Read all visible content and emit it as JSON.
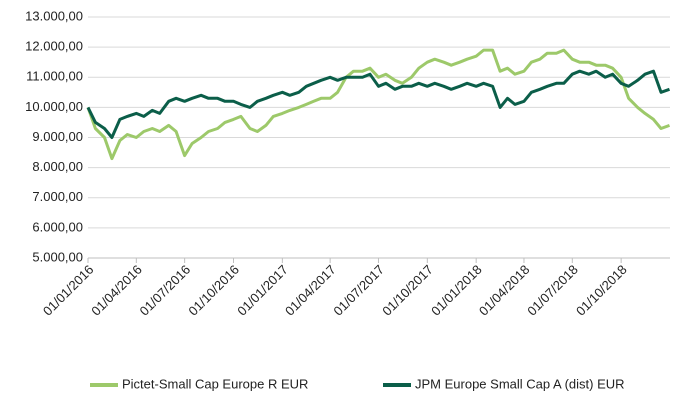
{
  "chart_data": {
    "type": "line",
    "x": [
      "2016-01-01",
      "2016-01-15",
      "2016-02-01",
      "2016-02-15",
      "2016-03-01",
      "2016-03-15",
      "2016-04-01",
      "2016-04-15",
      "2016-05-01",
      "2016-05-15",
      "2016-06-01",
      "2016-06-15",
      "2016-07-01",
      "2016-07-15",
      "2016-08-01",
      "2016-08-15",
      "2016-09-01",
      "2016-09-15",
      "2016-10-01",
      "2016-10-15",
      "2016-11-01",
      "2016-11-15",
      "2016-12-01",
      "2016-12-15",
      "2017-01-01",
      "2017-01-15",
      "2017-02-01",
      "2017-02-15",
      "2017-03-01",
      "2017-03-15",
      "2017-04-01",
      "2017-04-15",
      "2017-05-01",
      "2017-05-15",
      "2017-06-01",
      "2017-06-15",
      "2017-07-01",
      "2017-07-15",
      "2017-08-01",
      "2017-08-15",
      "2017-09-01",
      "2017-09-15",
      "2017-10-01",
      "2017-10-15",
      "2017-11-01",
      "2017-11-15",
      "2017-12-01",
      "2017-12-15",
      "2018-01-01",
      "2018-01-15",
      "2018-02-01",
      "2018-02-15",
      "2018-03-01",
      "2018-03-15",
      "2018-04-01",
      "2018-04-15",
      "2018-05-01",
      "2018-05-15",
      "2018-06-01",
      "2018-06-15",
      "2018-07-01",
      "2018-07-15",
      "2018-08-01",
      "2018-08-15",
      "2018-09-01",
      "2018-09-15",
      "2018-10-01",
      "2018-10-15",
      "2018-11-01",
      "2018-11-15",
      "2018-12-01",
      "2018-12-15",
      "2018-12-31"
    ],
    "series": [
      {
        "name": "Pictet-Small Cap Europe R EUR",
        "color": "#9dc96a",
        "values": [
          10000,
          9300,
          9000,
          8300,
          8900,
          9100,
          9000,
          9200,
          9300,
          9200,
          9400,
          9200,
          8400,
          8800,
          9000,
          9200,
          9300,
          9500,
          9600,
          9700,
          9300,
          9200,
          9400,
          9700,
          9800,
          9900,
          10000,
          10100,
          10200,
          10300,
          10300,
          10500,
          11000,
          11200,
          11200,
          11300,
          11000,
          11100,
          10900,
          10800,
          11000,
          11300,
          11500,
          11600,
          11500,
          11400,
          11500,
          11600,
          11700,
          11900,
          11900,
          11200,
          11300,
          11100,
          11200,
          11500,
          11600,
          11800,
          11800,
          11900,
          11600,
          11500,
          11500,
          11400,
          11400,
          11300,
          11000,
          10300,
          10000,
          9800,
          9600,
          9300,
          9400
        ]
      },
      {
        "name": "JPM Europe Small Cap A (dist) EUR",
        "color": "#0b5e49",
        "values": [
          10000,
          9500,
          9300,
          9000,
          9600,
          9700,
          9800,
          9700,
          9900,
          9800,
          10200,
          10300,
          10200,
          10300,
          10400,
          10300,
          10300,
          10200,
          10200,
          10100,
          10000,
          10200,
          10300,
          10400,
          10500,
          10400,
          10500,
          10700,
          10800,
          10900,
          11000,
          10900,
          11000,
          11000,
          11000,
          11100,
          10700,
          10800,
          10600,
          10700,
          10700,
          10800,
          10700,
          10800,
          10700,
          10600,
          10700,
          10800,
          10700,
          10800,
          10700,
          10000,
          10300,
          10100,
          10200,
          10500,
          10600,
          10700,
          10800,
          10800,
          11100,
          11200,
          11100,
          11200,
          11000,
          11100,
          10800,
          10700,
          10900,
          11100,
          11200,
          10500,
          10600
        ]
      }
    ],
    "xlim": [
      "2016-01-01",
      "2019-01-01"
    ],
    "xticks": [
      {
        "value": "2016-01-01",
        "label": "01/01/2016"
      },
      {
        "value": "2016-04-01",
        "label": "01/04/2016"
      },
      {
        "value": "2016-07-01",
        "label": "01/07/2016"
      },
      {
        "value": "2016-10-01",
        "label": "01/10/2016"
      },
      {
        "value": "2017-01-01",
        "label": "01/01/2017"
      },
      {
        "value": "2017-04-01",
        "label": "01/04/2017"
      },
      {
        "value": "2017-07-01",
        "label": "01/07/2017"
      },
      {
        "value": "2017-10-01",
        "label": "01/10/2017"
      },
      {
        "value": "2018-01-01",
        "label": "01/01/2018"
      },
      {
        "value": "2018-04-01",
        "label": "01/04/2018"
      },
      {
        "value": "2018-07-01",
        "label": "01/07/2018"
      },
      {
        "value": "2018-10-01",
        "label": "01/10/2018"
      }
    ],
    "ylim": [
      5000,
      13000
    ],
    "yticks": [
      {
        "value": 5000,
        "label": "5.000,00"
      },
      {
        "value": 6000,
        "label": "6.000,00"
      },
      {
        "value": 7000,
        "label": "7.000,00"
      },
      {
        "value": 8000,
        "label": "8.000,00"
      },
      {
        "value": 9000,
        "label": "9.000,00"
      },
      {
        "value": 10000,
        "label": "10.000,00"
      },
      {
        "value": 11000,
        "label": "11.000,00"
      },
      {
        "value": 12000,
        "label": "12.000,00"
      },
      {
        "value": 13000,
        "label": "13.000,00"
      }
    ],
    "grid": true
  }
}
